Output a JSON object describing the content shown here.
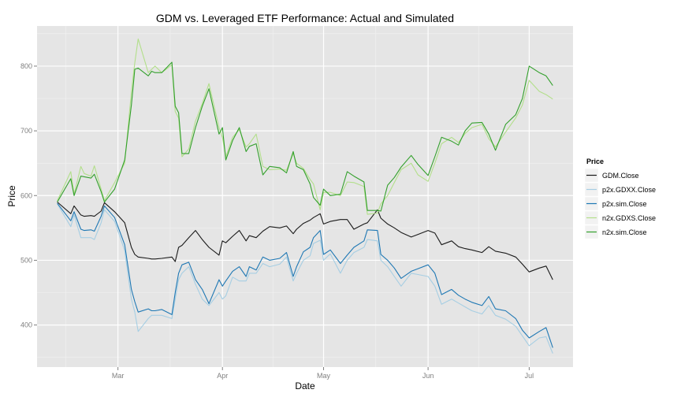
{
  "chart_data": {
    "type": "line",
    "title": "GDM vs. Leveraged ETF Performance: Actual and Simulated",
    "xlabel": "Date",
    "ylabel": "Price",
    "x_range": [
      "2013-02-05",
      "2013-07-14"
    ],
    "ylim": [
      335,
      862
    ],
    "y_ticks": [
      400,
      500,
      600,
      700,
      800
    ],
    "x_ticks": [
      {
        "date": "2013-03-01",
        "label": "Mar"
      },
      {
        "date": "2013-04-01",
        "label": "Apr"
      },
      {
        "date": "2013-05-01",
        "label": "May"
      },
      {
        "date": "2013-06-01",
        "label": "Jun"
      },
      {
        "date": "2013-07-01",
        "label": "Jul"
      }
    ],
    "grid": true,
    "legend": {
      "title": "Price",
      "position": "right"
    },
    "dates": [
      "2013-02-11",
      "2013-02-15",
      "2013-02-16",
      "2013-02-18",
      "2013-02-19",
      "2013-02-21",
      "2013-02-22",
      "2013-02-24",
      "2013-02-25",
      "2013-02-28",
      "2013-03-03",
      "2013-03-05",
      "2013-03-06",
      "2013-03-07",
      "2013-03-10",
      "2013-03-11",
      "2013-03-12",
      "2013-03-14",
      "2013-03-17",
      "2013-03-18",
      "2013-03-19",
      "2013-03-20",
      "2013-03-22",
      "2013-03-24",
      "2013-03-26",
      "2013-03-28",
      "2013-03-31",
      "2013-04-01",
      "2013-04-02",
      "2013-04-04",
      "2013-04-06",
      "2013-04-08",
      "2013-04-09",
      "2013-04-11",
      "2013-04-13",
      "2013-04-15",
      "2013-04-18",
      "2013-04-20",
      "2013-04-22",
      "2013-04-23",
      "2013-04-25",
      "2013-04-27",
      "2013-04-28",
      "2013-04-30",
      "2013-05-01",
      "2013-05-03",
      "2013-05-06",
      "2013-05-08",
      "2013-05-10",
      "2013-05-13",
      "2013-05-14",
      "2013-05-17",
      "2013-05-18",
      "2013-05-20",
      "2013-05-22",
      "2013-05-24",
      "2013-05-27",
      "2013-05-29",
      "2013-06-01",
      "2013-06-03",
      "2013-06-05",
      "2013-06-08",
      "2013-06-10",
      "2013-06-12",
      "2013-06-14",
      "2013-06-17",
      "2013-06-19",
      "2013-06-21",
      "2013-06-24",
      "2013-06-27",
      "2013-06-29",
      "2013-07-01",
      "2013-07-04",
      "2013-07-06",
      "2013-07-08"
    ],
    "series": [
      {
        "name": "GDM.Close",
        "color": "#1a1a1a",
        "values": [
          590,
          572,
          584,
          570,
          568,
          569,
          568,
          576,
          589,
          575,
          558,
          520,
          509,
          505,
          503,
          502,
          502,
          503,
          505,
          498,
          520,
          523,
          535,
          546,
          532,
          520,
          508,
          530,
          527,
          537,
          546,
          530,
          538,
          535,
          545,
          552,
          550,
          553,
          541,
          548,
          557,
          562,
          566,
          572,
          556,
          560,
          563,
          563,
          548,
          556,
          558,
          578,
          565,
          556,
          550,
          543,
          536,
          540,
          546,
          542,
          524,
          530,
          521,
          518,
          516,
          512,
          521,
          514,
          511,
          505,
          494,
          482,
          488,
          491,
          470
        ]
      },
      {
        "name": "p2x.GDXX.Close",
        "color": "#a6cee3",
        "values": [
          587,
          552,
          570,
          535,
          535,
          535,
          532,
          558,
          578,
          560,
          515,
          440,
          420,
          390,
          410,
          415,
          415,
          415,
          410,
          440,
          470,
          480,
          490,
          463,
          440,
          430,
          450,
          440,
          445,
          474,
          468,
          468,
          480,
          480,
          495,
          490,
          494,
          505,
          468,
          480,
          500,
          507,
          526,
          531,
          500,
          510,
          480,
          500,
          512,
          520,
          532,
          530,
          500,
          490,
          475,
          460,
          480,
          478,
          475,
          460,
          432,
          440,
          434,
          428,
          422,
          417,
          430,
          415,
          409,
          398,
          383,
          368,
          380,
          382,
          356
        ]
      },
      {
        "name": "p2x.sim.Close",
        "color": "#1f78b4",
        "values": [
          588,
          561,
          575,
          548,
          546,
          547,
          545,
          568,
          584,
          566,
          524,
          455,
          436,
          420,
          425,
          422,
          422,
          424,
          416,
          450,
          480,
          493,
          497,
          470,
          455,
          433,
          470,
          460,
          468,
          483,
          490,
          475,
          490,
          485,
          505,
          500,
          503,
          512,
          475,
          490,
          513,
          520,
          535,
          546,
          509,
          516,
          495,
          508,
          520,
          530,
          547,
          546,
          509,
          500,
          488,
          472,
          483,
          487,
          493,
          480,
          447,
          455,
          446,
          440,
          435,
          430,
          444,
          425,
          422,
          410,
          392,
          380,
          390,
          396,
          365
        ]
      },
      {
        "name": "n2x.GDXS.Close",
        "color": "#b2df8a",
        "values": [
          592,
          637,
          602,
          645,
          634,
          630,
          646,
          610,
          592,
          620,
          650,
          760,
          805,
          842,
          790,
          795,
          800,
          790,
          802,
          730,
          720,
          660,
          672,
          715,
          742,
          773,
          705,
          690,
          660,
          690,
          702,
          675,
          680,
          695,
          645,
          640,
          641,
          639,
          665,
          650,
          642,
          625,
          618,
          578,
          605,
          605,
          600,
          621,
          620,
          614,
          571,
          573,
          587,
          600,
          620,
          640,
          650,
          632,
          622,
          650,
          680,
          690,
          682,
          696,
          705,
          710,
          688,
          675,
          698,
          720,
          740,
          778,
          761,
          756,
          749
        ]
      },
      {
        "name": "n2x.sim.Close",
        "color": "#33a02c",
        "values": [
          590,
          626,
          600,
          630,
          629,
          627,
          633,
          606,
          590,
          610,
          655,
          740,
          795,
          797,
          785,
          792,
          790,
          790,
          806,
          738,
          728,
          665,
          665,
          705,
          738,
          765,
          695,
          705,
          655,
          685,
          705,
          668,
          676,
          680,
          632,
          645,
          643,
          635,
          668,
          645,
          640,
          618,
          597,
          585,
          610,
          600,
          602,
          637,
          630,
          621,
          577,
          577,
          576,
          616,
          628,
          644,
          662,
          648,
          631,
          660,
          690,
          684,
          678,
          700,
          712,
          713,
          695,
          670,
          710,
          725,
          750,
          800,
          790,
          785,
          770
        ]
      }
    ]
  }
}
